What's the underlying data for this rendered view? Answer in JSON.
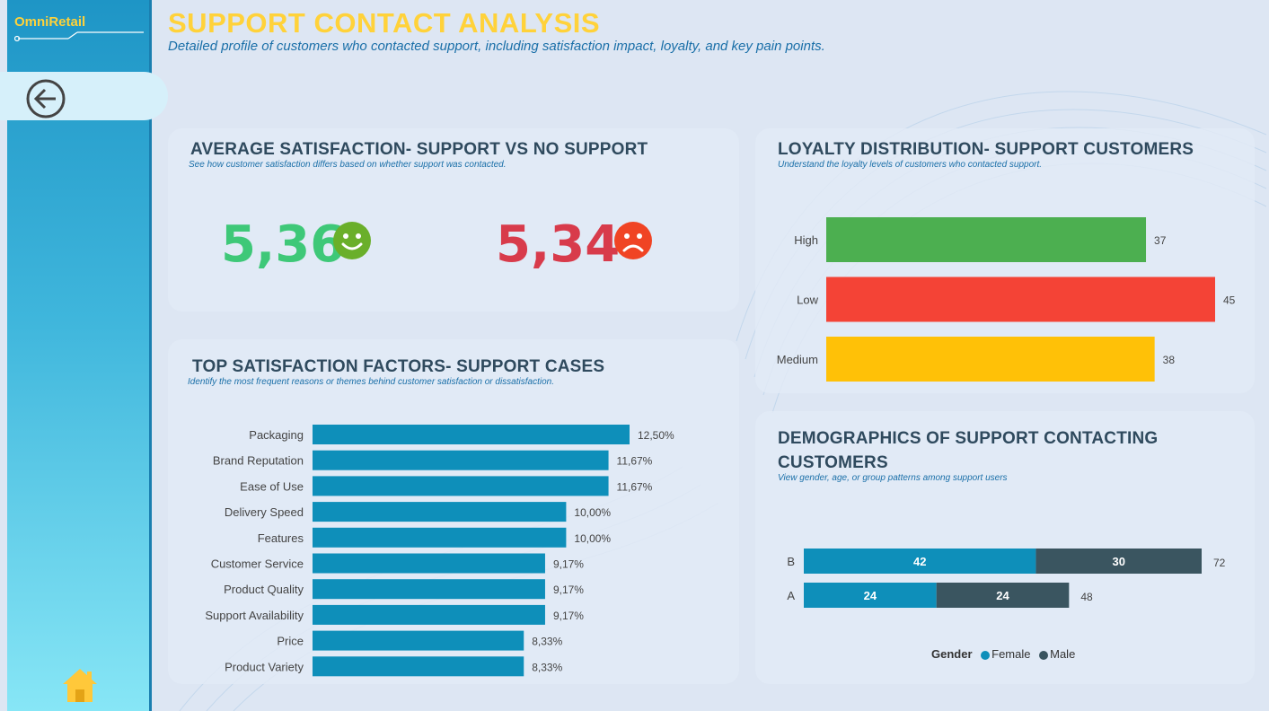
{
  "app": {
    "brand": "OmniRetail"
  },
  "header": {
    "title": "SUPPORT CONTACT ANALYSIS",
    "subtitle": "Detailed profile of customers who contacted support, including satisfaction impact, loyalty, and key pain points."
  },
  "colors": {
    "title": "#ffd23a",
    "accent": "#0e8fba",
    "dark": "#3a5560",
    "green": "#4caf50",
    "red": "#f44336",
    "amber": "#ffc107"
  },
  "satisfaction": {
    "title": "AVERAGE  SATISFACTION-  SUPPORT VS NO SUPPORT",
    "subtitle": "See how customer satisfaction differs based on whether support was contacted.",
    "with_support": "5,36",
    "no_support": "5,34",
    "icons": [
      "smiley-face-icon",
      "sad-face-icon"
    ]
  },
  "factors": {
    "title": "TOP SATISFACTION FACTORS-  SUPPORT CASES",
    "subtitle": "Identify the most frequent reasons or themes behind customer satisfaction or dissatisfaction."
  },
  "loyalty": {
    "title": "LOYALTY DISTRIBUTION-  SUPPORT CUSTOMERS",
    "subtitle": "Understand the loyalty levels of customers who contacted support."
  },
  "demographics": {
    "title_line1": "DEMOGRAPHICS OF SUPPORT CONTACTING",
    "title_line2": "CUSTOMERS",
    "subtitle": "View gender, age, or group patterns among support users",
    "legend_title": "Gender",
    "legend_items": [
      "Female",
      "Male"
    ]
  },
  "chart_data": [
    {
      "type": "bar",
      "orientation": "horizontal",
      "categories": [
        "Packaging",
        "Brand Reputation",
        "Ease of Use",
        "Delivery Speed",
        "Features",
        "Customer Service",
        "Product Quality",
        "Support Availability",
        "Price",
        "Product Variety"
      ],
      "values": [
        12.5,
        11.67,
        11.67,
        10.0,
        10.0,
        9.17,
        9.17,
        9.17,
        8.33,
        8.33
      ],
      "labels": [
        "12,50%",
        "11,67%",
        "11,67%",
        "10,00%",
        "10,00%",
        "9,17%",
        "9,17%",
        "9,17%",
        "8,33%",
        "8,33%"
      ],
      "color": "#0e8fba",
      "title": "TOP SATISFACTION FACTORS-  SUPPORT CASES"
    },
    {
      "type": "bar",
      "orientation": "horizontal",
      "categories": [
        "High",
        "Low",
        "Medium"
      ],
      "values": [
        37,
        45,
        38
      ],
      "colors": [
        "#4caf50",
        "#f44336",
        "#ffc107"
      ],
      "title": "LOYALTY DISTRIBUTION-  SUPPORT CUSTOMERS"
    },
    {
      "type": "bar",
      "orientation": "horizontal",
      "stacked": true,
      "categories": [
        "B",
        "A"
      ],
      "series": [
        {
          "name": "Female",
          "values": [
            42,
            24
          ],
          "color": "#0e8fba"
        },
        {
          "name": "Male",
          "values": [
            30,
            24
          ],
          "color": "#3a5560"
        }
      ],
      "totals": [
        72,
        48
      ],
      "legend": "bottom",
      "title": "DEMOGRAPHICS OF SUPPORT CONTACTING CUSTOMERS"
    }
  ]
}
